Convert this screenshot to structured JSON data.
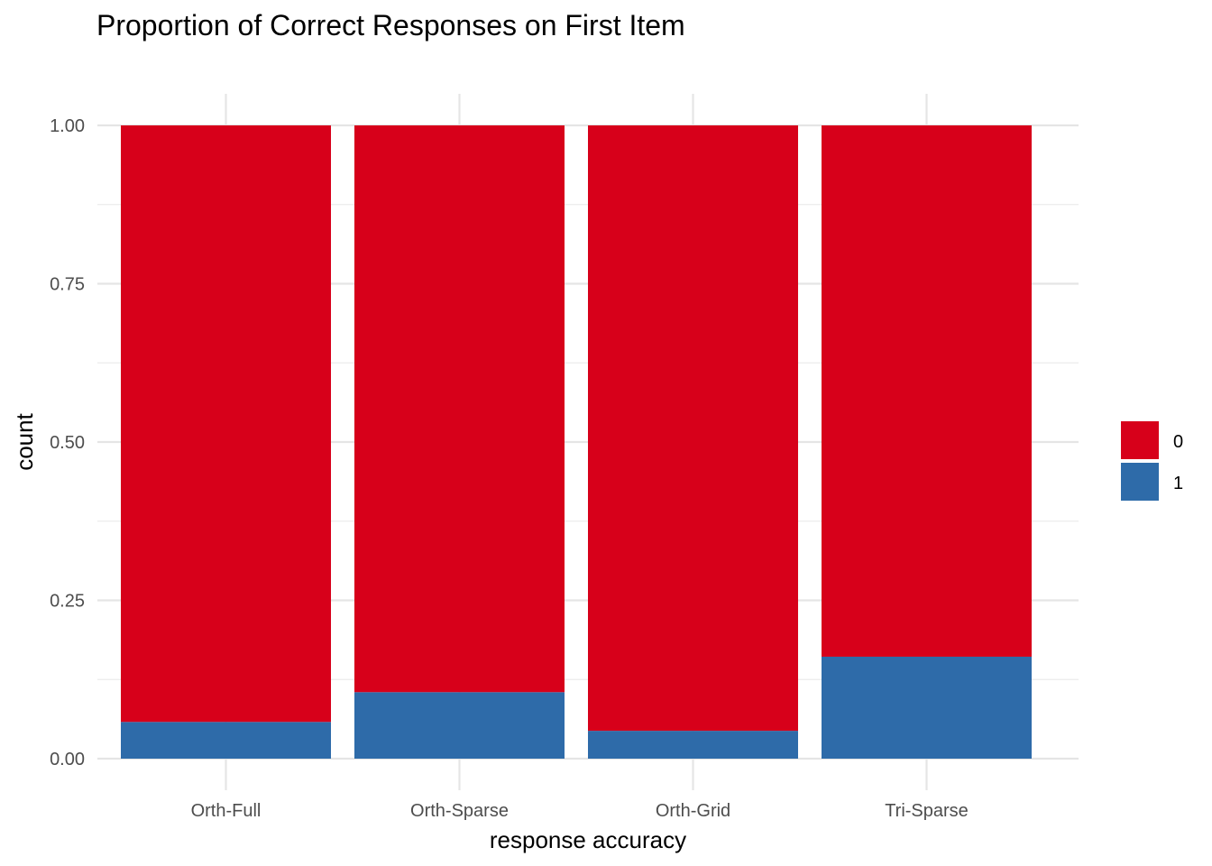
{
  "chart_data": {
    "type": "bar",
    "stacked": true,
    "title": "Proportion of Correct Responses on First Item",
    "xlabel": "response accuracy",
    "ylabel": "count",
    "categories": [
      "Orth-Full",
      "Orth-Sparse",
      "Orth-Grid",
      "Tri-Sparse"
    ],
    "series": [
      {
        "name": "1",
        "color": "#2E6BA9",
        "values": [
          0.058,
          0.105,
          0.044,
          0.161
        ]
      },
      {
        "name": "0",
        "color": "#D7001A",
        "values": [
          0.942,
          0.895,
          0.956,
          0.839
        ]
      }
    ],
    "legend_order": [
      "0",
      "1"
    ],
    "ylim": [
      0,
      1
    ],
    "yticks": [
      0,
      0.25,
      0.5,
      0.75,
      1
    ],
    "ytick_labels": [
      "0.00",
      "0.25",
      "0.50",
      "0.75",
      "1.00"
    ],
    "grid": true,
    "legend": "right"
  }
}
